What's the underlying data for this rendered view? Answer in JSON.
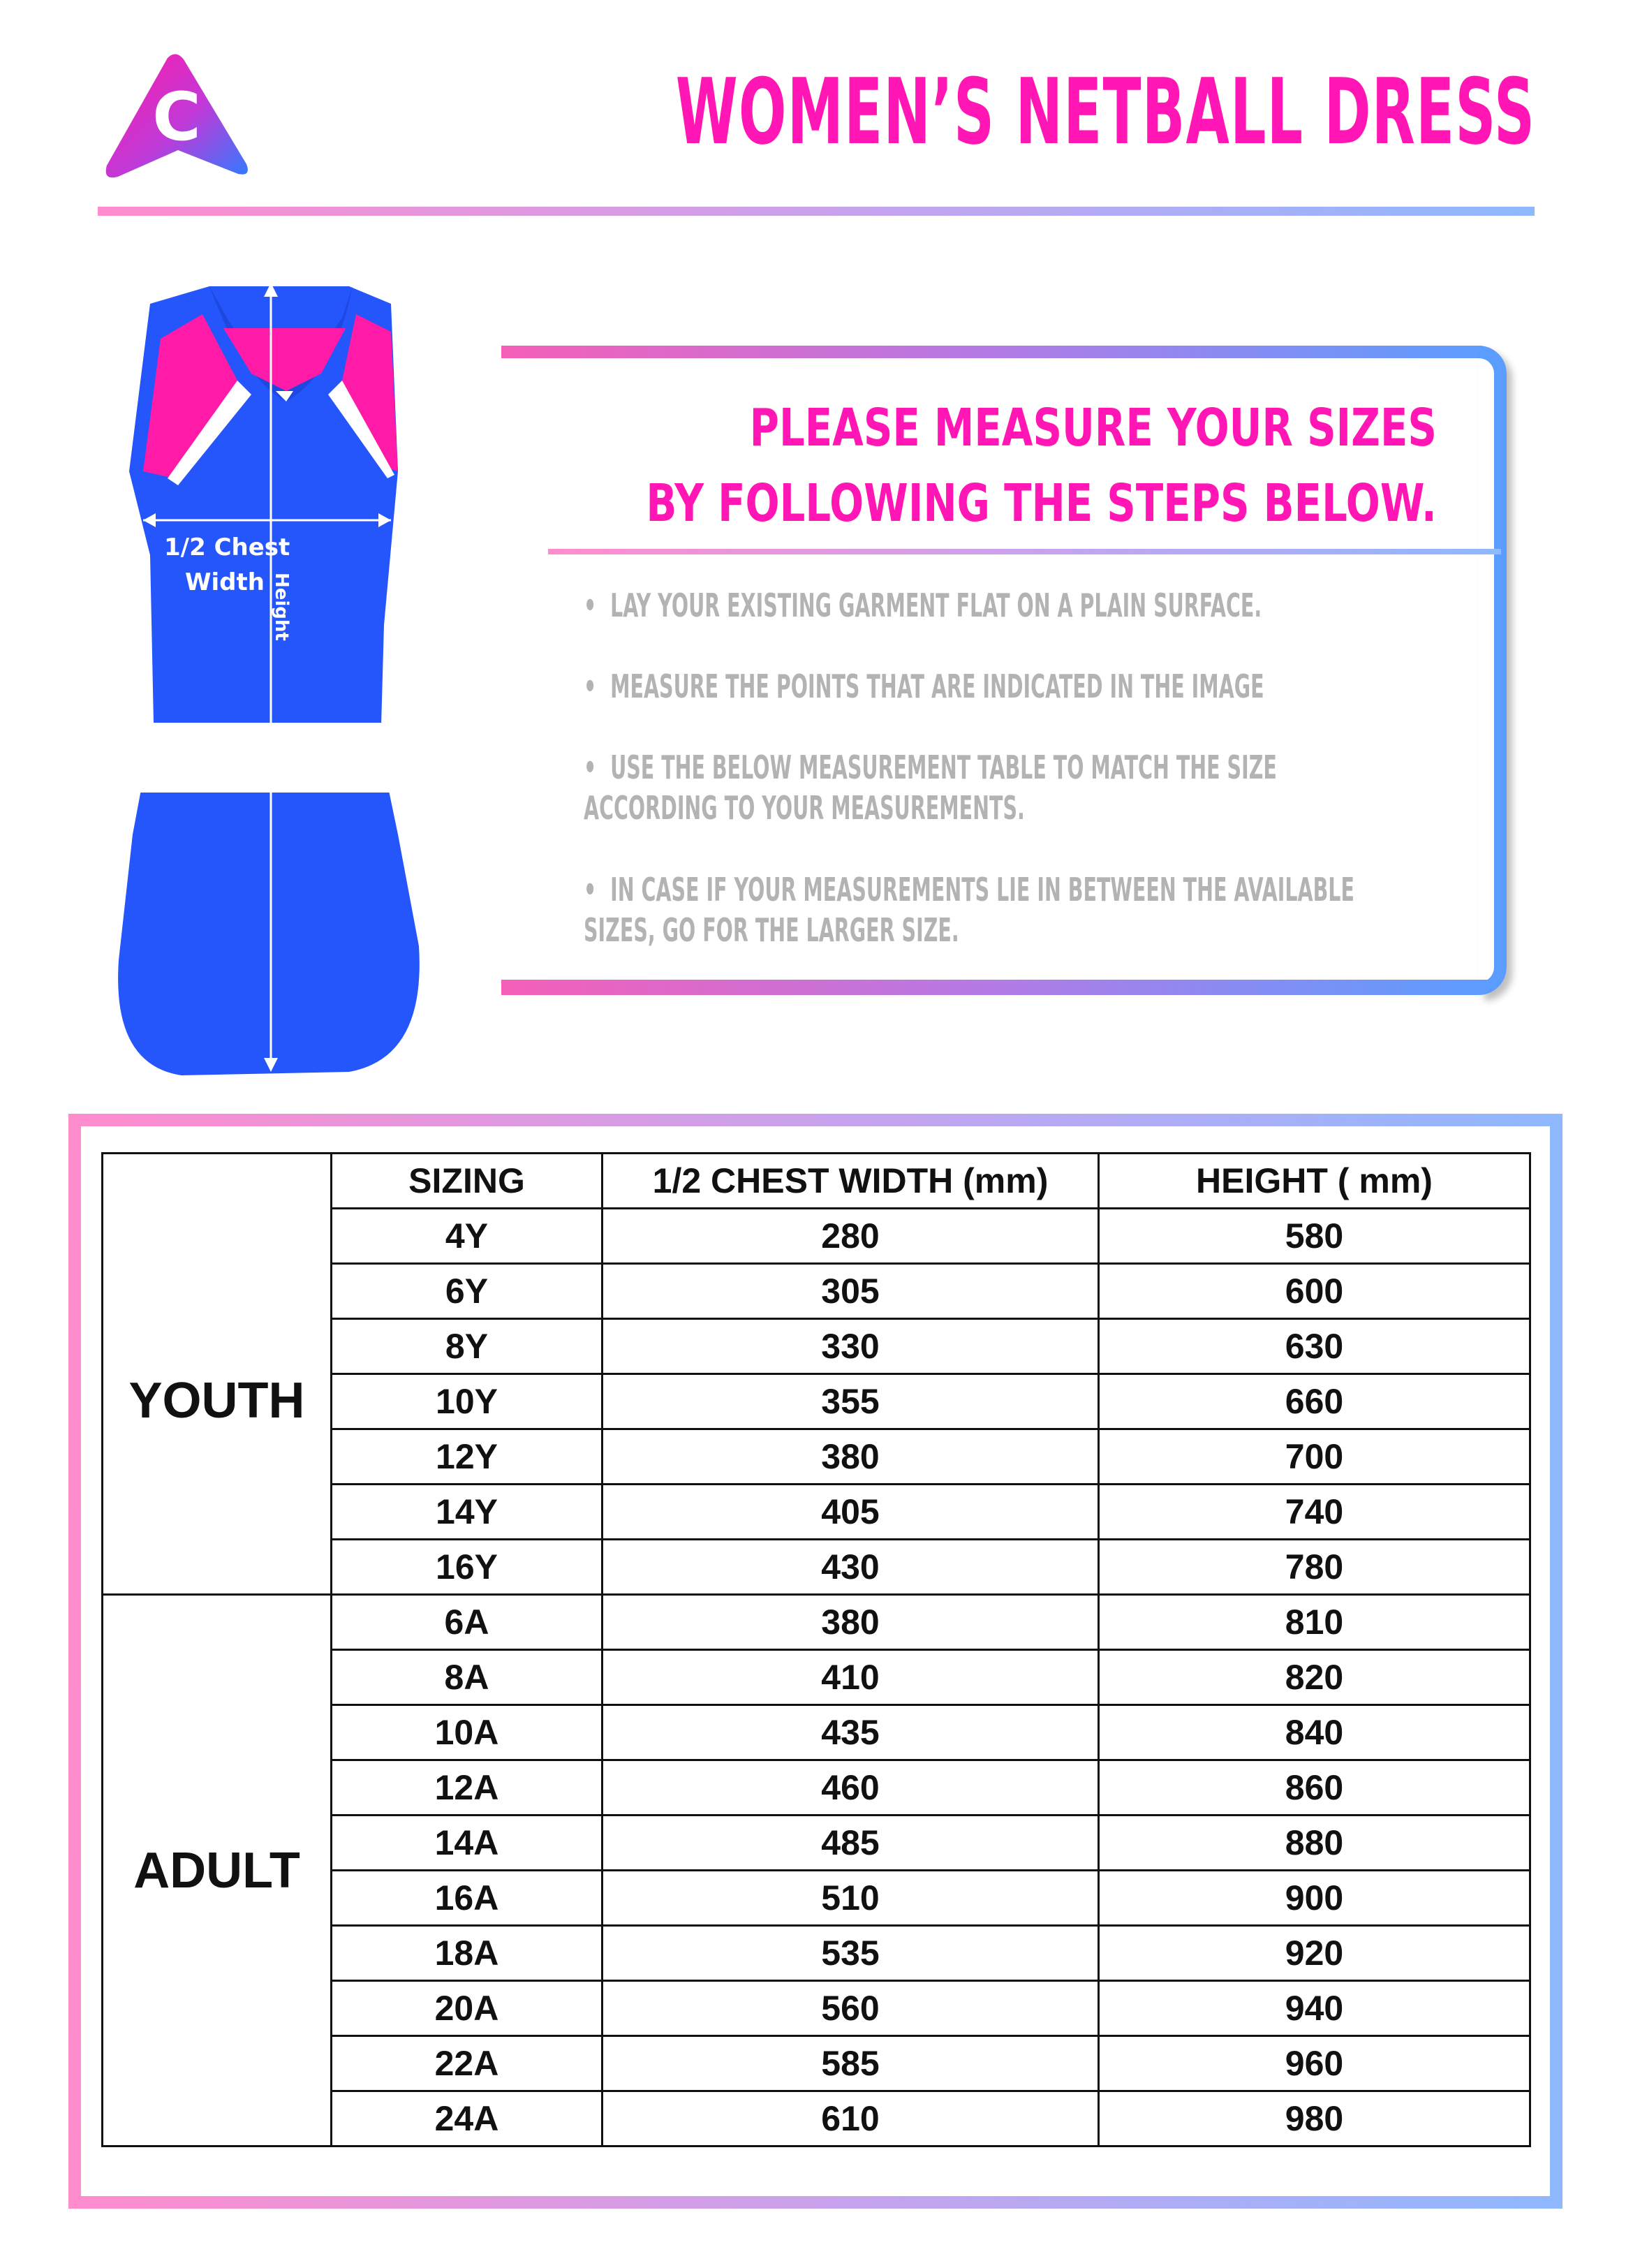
{
  "header": {
    "title": "WOMEN’S NETBALL DRESS",
    "logo_letter": "C"
  },
  "colors": {
    "accent": "#ff16b4",
    "blue": "#2b5cff",
    "gradient_start": "#ff8ccd",
    "gradient_end": "#8fb8ff",
    "step_text": "#b3b3b3"
  },
  "diagram": {
    "chest_label_1": "1/2 Chest",
    "chest_label_2": "Width",
    "height_label": "Height"
  },
  "instructions": {
    "heading_line_1": "PLEASE MEASURE YOUR SIZES",
    "heading_line_2": "BY FOLLOWING THE STEPS BELOW.",
    "steps": [
      "•  LAY YOUR EXISTING GARMENT FLAT ON A PLAIN SURFACE.",
      "•  MEASURE THE POINTS THAT ARE INDICATED IN THE IMAGE",
      "•  USE THE BELOW MEASUREMENT TABLE TO MATCH THE SIZE\nACCORDING TO YOUR MEASUREMENTS.",
      "•  IN CASE IF YOUR MEASUREMENTS LIE IN BETWEEN THE AVAILABLE\nSIZES, GO FOR THE LARGER SIZE."
    ]
  },
  "table": {
    "headers": [
      "SIZING",
      "1/2 CHEST WIDTH (mm)",
      "HEIGHT ( mm)"
    ],
    "groups": [
      {
        "label": "YOUTH",
        "rows": [
          [
            "4Y",
            "280",
            "580"
          ],
          [
            "6Y",
            "305",
            "600"
          ],
          [
            "8Y",
            "330",
            "630"
          ],
          [
            "10Y",
            "355",
            "660"
          ],
          [
            "12Y",
            "380",
            "700"
          ],
          [
            "14Y",
            "405",
            "740"
          ],
          [
            "16Y",
            "430",
            "780"
          ]
        ]
      },
      {
        "label": "ADULT",
        "rows": [
          [
            "6A",
            "380",
            "810"
          ],
          [
            "8A",
            "410",
            "820"
          ],
          [
            "10A",
            "435",
            "840"
          ],
          [
            "12A",
            "460",
            "860"
          ],
          [
            "14A",
            "485",
            "880"
          ],
          [
            "16A",
            "510",
            "900"
          ],
          [
            "18A",
            "535",
            "920"
          ],
          [
            "20A",
            "560",
            "940"
          ],
          [
            "22A",
            "585",
            "960"
          ],
          [
            "24A",
            "610",
            "980"
          ]
        ]
      }
    ]
  }
}
